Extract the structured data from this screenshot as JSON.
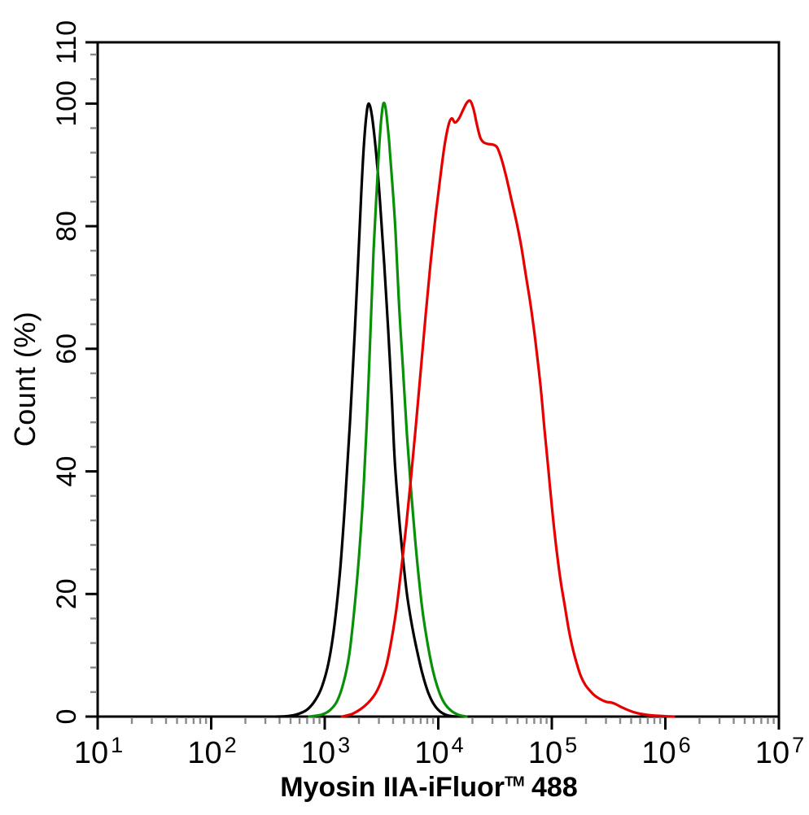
{
  "figure": {
    "y_axis_title": "Count  (%)",
    "x_axis_title": {
      "before_tm": "Myosin IIA-iFluor",
      "tm": "TM",
      "after_tm": " 488"
    }
  },
  "chart_data": {
    "type": "line",
    "subtype": "flow-cytometry-histogram",
    "title": "",
    "xlabel": "Myosin IIA-iFluor™ 488",
    "ylabel": "Count (%)",
    "x_scale": "log10",
    "xlim_log10": [
      1,
      7
    ],
    "ylim": [
      0,
      110
    ],
    "grid": false,
    "legend_position": "none",
    "axis_color": "#000000",
    "minor_tick_color": "#8a8a8a",
    "x_major_ticks": [
      {
        "base": "10",
        "exp": "1",
        "value_log10": 1
      },
      {
        "base": "10",
        "exp": "2",
        "value_log10": 2
      },
      {
        "base": "10",
        "exp": "3",
        "value_log10": 3
      },
      {
        "base": "10",
        "exp": "4",
        "value_log10": 4
      },
      {
        "base": "10",
        "exp": "5",
        "value_log10": 5
      },
      {
        "base": "10",
        "exp": "6",
        "value_log10": 6
      },
      {
        "base": "10",
        "exp": "7",
        "value_log10": 7
      }
    ],
    "x_minor_multipliers": [
      2,
      3,
      4,
      5,
      6,
      7,
      8,
      9
    ],
    "y_major_ticks": [
      {
        "label": "0",
        "value": 0
      },
      {
        "label": "20",
        "value": 20
      },
      {
        "label": "40",
        "value": 40
      },
      {
        "label": "60",
        "value": 60
      },
      {
        "label": "80",
        "value": 80
      },
      {
        "label": "100",
        "value": 100
      },
      {
        "label": "110",
        "value": 110
      }
    ],
    "y_minor_tick_step": 4,
    "series": [
      {
        "name": "black-curve",
        "color": "#000000",
        "peak_percent": 100,
        "peak_x_approx": 2450,
        "points": [
          [
            2.577,
            0
          ],
          [
            2.685,
            0.1
          ],
          [
            2.778,
            0.5
          ],
          [
            2.849,
            1.2
          ],
          [
            2.921,
            2.8
          ],
          [
            2.978,
            5
          ],
          [
            3.036,
            9
          ],
          [
            3.086,
            15
          ],
          [
            3.136,
            24
          ],
          [
            3.179,
            35
          ],
          [
            3.222,
            48
          ],
          [
            3.265,
            63
          ],
          [
            3.301,
            77
          ],
          [
            3.323,
            86
          ],
          [
            3.344,
            93
          ],
          [
            3.366,
            98
          ],
          [
            3.387,
            100
          ],
          [
            3.416,
            98
          ],
          [
            3.452,
            92
          ],
          [
            3.487,
            84
          ],
          [
            3.523,
            74
          ],
          [
            3.559,
            63
          ],
          [
            3.588,
            53
          ],
          [
            3.616,
            42
          ],
          [
            3.652,
            33
          ],
          [
            3.688,
            26
          ],
          [
            3.724,
            20
          ],
          [
            3.767,
            15
          ],
          [
            3.81,
            11
          ],
          [
            3.86,
            7
          ],
          [
            3.91,
            4
          ],
          [
            3.961,
            2
          ],
          [
            4.018,
            0.8
          ],
          [
            4.082,
            0.2
          ],
          [
            4.154,
            0
          ]
        ]
      },
      {
        "name": "green-curve",
        "color": "#089008",
        "peak_percent": 100,
        "peak_x_approx": 3300,
        "points": [
          [
            2.864,
            0
          ],
          [
            2.971,
            0.3
          ],
          [
            3.043,
            1
          ],
          [
            3.108,
            2.5
          ],
          [
            3.165,
            5.5
          ],
          [
            3.215,
            10
          ],
          [
            3.258,
            17
          ],
          [
            3.301,
            26
          ],
          [
            3.344,
            38
          ],
          [
            3.38,
            52
          ],
          [
            3.409,
            66
          ],
          [
            3.43,
            76
          ],
          [
            3.452,
            84
          ],
          [
            3.473,
            91
          ],
          [
            3.495,
            97
          ],
          [
            3.516,
            100
          ],
          [
            3.538,
            99
          ],
          [
            3.566,
            94
          ],
          [
            3.595,
            87
          ],
          [
            3.624,
            79
          ],
          [
            3.652,
            68
          ],
          [
            3.688,
            57
          ],
          [
            3.724,
            46
          ],
          [
            3.76,
            37
          ],
          [
            3.796,
            29
          ],
          [
            3.832,
            22
          ],
          [
            3.867,
            16.5
          ],
          [
            3.91,
            11.5
          ],
          [
            3.953,
            7.5
          ],
          [
            4.004,
            4.2
          ],
          [
            4.054,
            2.2
          ],
          [
            4.111,
            1
          ],
          [
            4.176,
            0.3
          ],
          [
            4.247,
            0
          ]
        ]
      },
      {
        "name": "red-curve",
        "color": "#e60000",
        "peak_percent": 100,
        "peak_x_approx": 19000,
        "points": [
          [
            3.151,
            0
          ],
          [
            3.237,
            0.4
          ],
          [
            3.315,
            1.2
          ],
          [
            3.38,
            2.2
          ],
          [
            3.43,
            3.3
          ],
          [
            3.466,
            4.4
          ],
          [
            3.502,
            6
          ],
          [
            3.545,
            8.5
          ],
          [
            3.588,
            12.5
          ],
          [
            3.631,
            17.5
          ],
          [
            3.674,
            24
          ],
          [
            3.717,
            31
          ],
          [
            3.76,
            39
          ],
          [
            3.803,
            47.5
          ],
          [
            3.846,
            56.5
          ],
          [
            3.889,
            65.5
          ],
          [
            3.932,
            74
          ],
          [
            3.975,
            81.5
          ],
          [
            4.018,
            88
          ],
          [
            4.054,
            93
          ],
          [
            4.09,
            96.5
          ],
          [
            4.118,
            97.6
          ],
          [
            4.147,
            96.9
          ],
          [
            4.183,
            97.6
          ],
          [
            4.219,
            99
          ],
          [
            4.254,
            100.2
          ],
          [
            4.283,
            100.4
          ],
          [
            4.312,
            99
          ],
          [
            4.341,
            96.5
          ],
          [
            4.369,
            94.5
          ],
          [
            4.398,
            93.7
          ],
          [
            4.441,
            93.4
          ],
          [
            4.484,
            93.3
          ],
          [
            4.52,
            92.8
          ],
          [
            4.556,
            91
          ],
          [
            4.599,
            88
          ],
          [
            4.642,
            84.5
          ],
          [
            4.685,
            81
          ],
          [
            4.728,
            77
          ],
          [
            4.771,
            72
          ],
          [
            4.814,
            67
          ],
          [
            4.857,
            61
          ],
          [
            4.9,
            54
          ],
          [
            4.935,
            47
          ],
          [
            4.971,
            40
          ],
          [
            5.007,
            33
          ],
          [
            5.043,
            27
          ],
          [
            5.079,
            22
          ],
          [
            5.115,
            18
          ],
          [
            5.151,
            14
          ],
          [
            5.186,
            11
          ],
          [
            5.222,
            8.5
          ],
          [
            5.258,
            6.5
          ],
          [
            5.294,
            5.2
          ],
          [
            5.337,
            4.2
          ],
          [
            5.38,
            3.4
          ],
          [
            5.43,
            2.8
          ],
          [
            5.48,
            2.4
          ],
          [
            5.523,
            2.3
          ],
          [
            5.566,
            2
          ],
          [
            5.617,
            1.5
          ],
          [
            5.667,
            1.1
          ],
          [
            5.724,
            0.7
          ],
          [
            5.796,
            0.4
          ],
          [
            5.875,
            0.2
          ],
          [
            5.961,
            0.1
          ],
          [
            6.075,
            0
          ]
        ]
      }
    ]
  }
}
